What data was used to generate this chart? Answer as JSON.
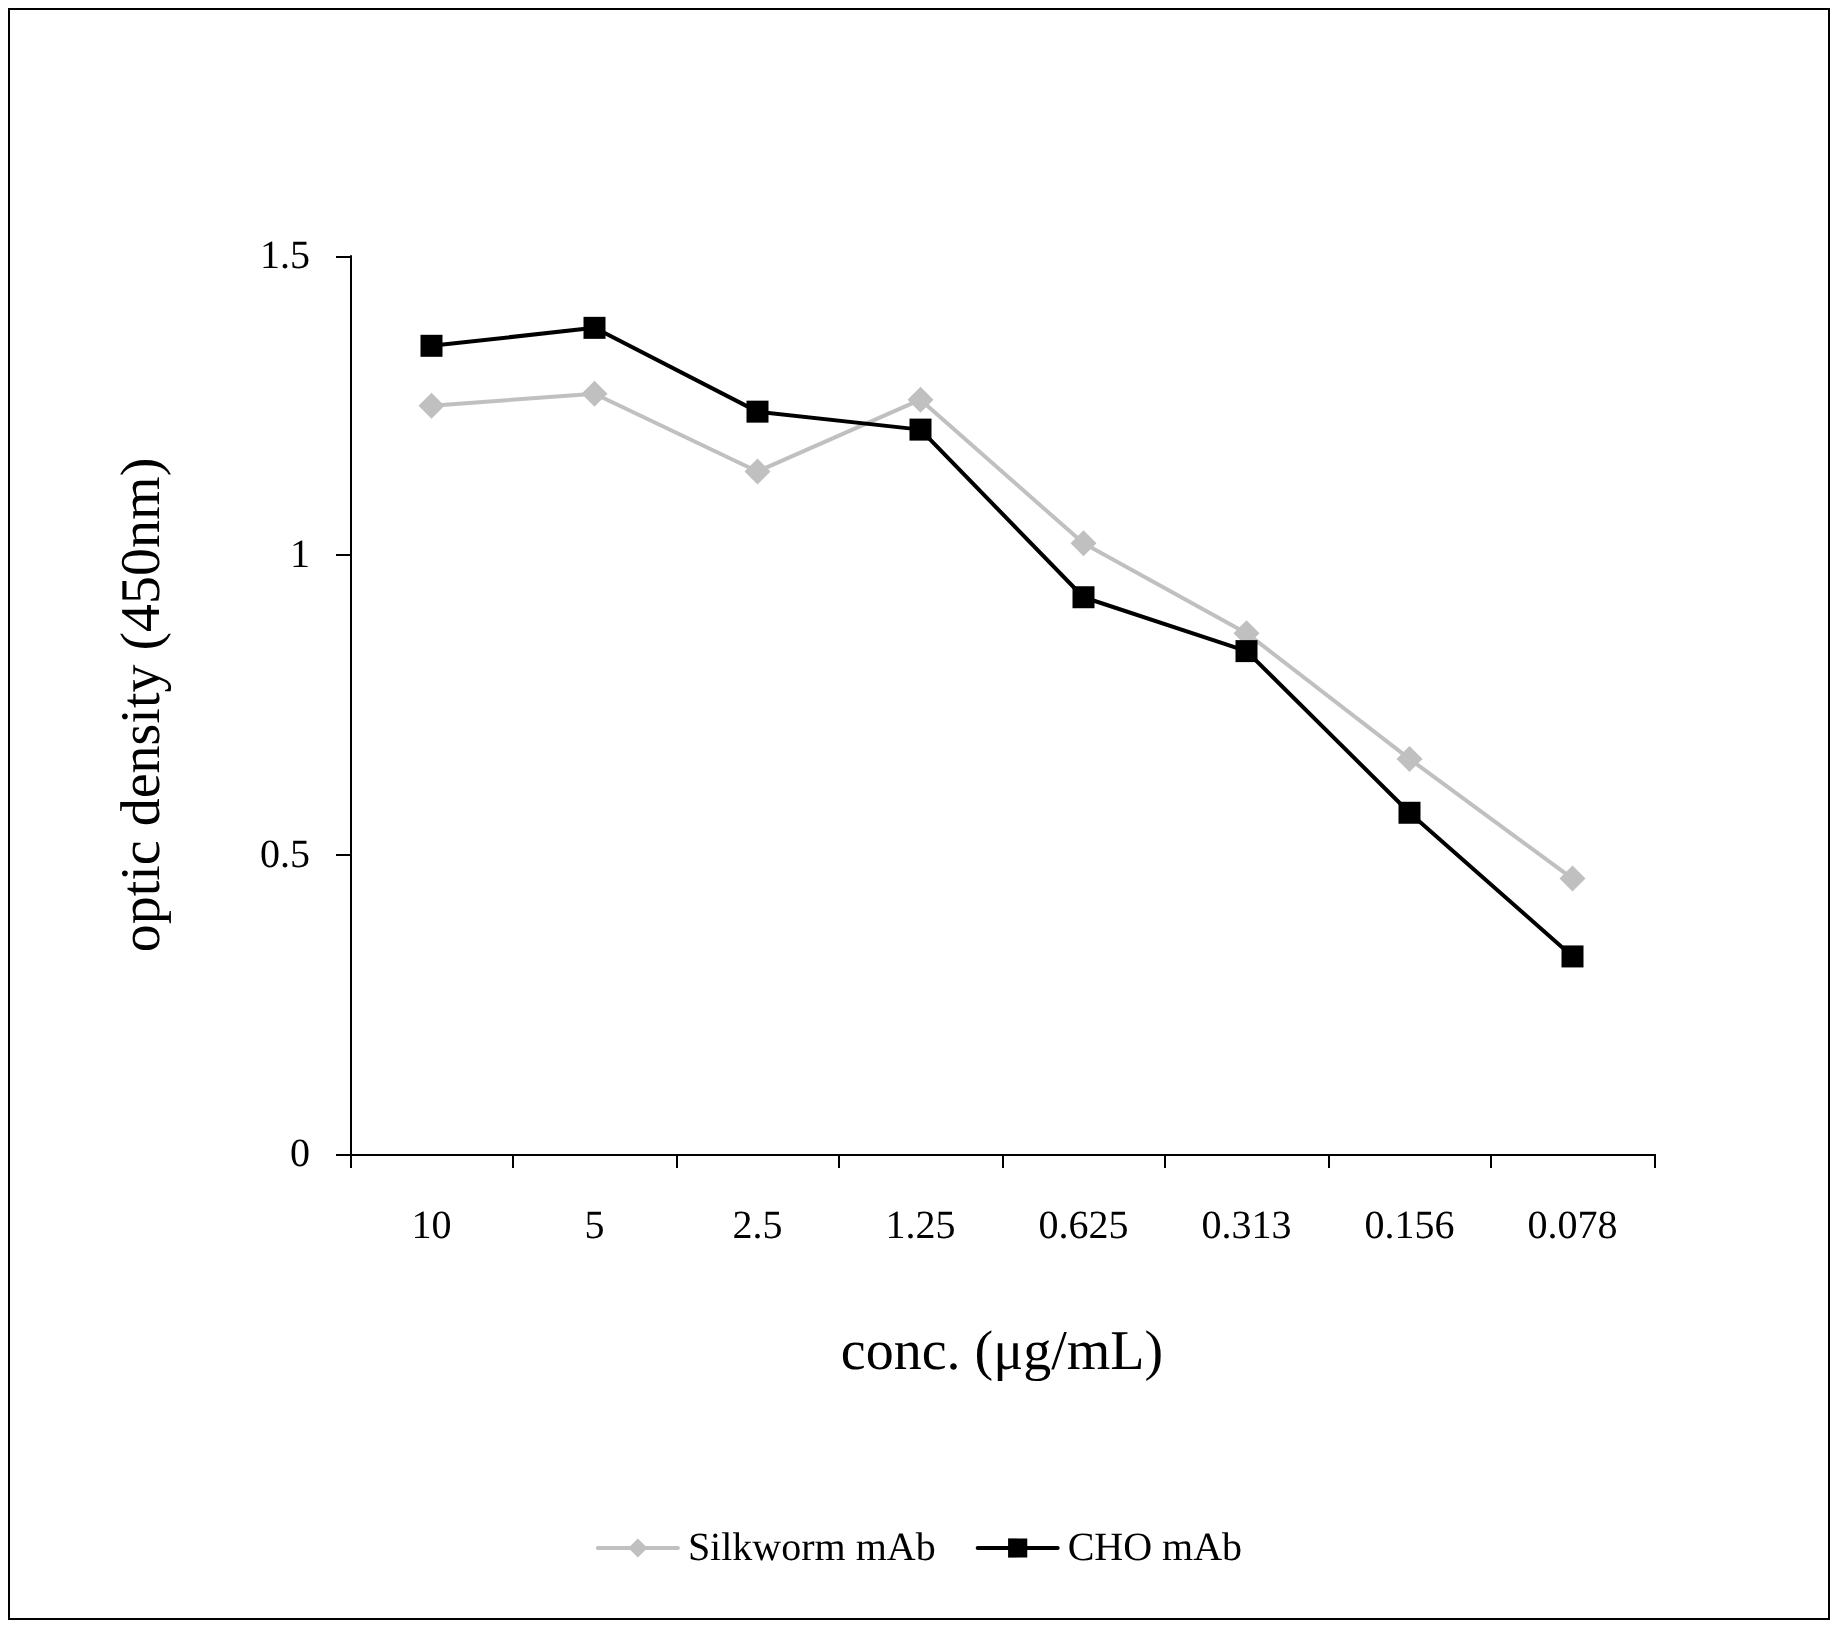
{
  "chart_data": {
    "type": "line",
    "xlabel": "conc. (μg/mL)",
    "ylabel": "optic density (450nm)",
    "categories": [
      "10",
      "5",
      "2.5",
      "1.25",
      "0.625",
      "0.313",
      "0.156",
      "0.078"
    ],
    "series": [
      {
        "name": "Silkworm mAb",
        "color": "#c0c0c0",
        "marker": "diamond",
        "values": [
          1.25,
          1.27,
          1.14,
          1.26,
          1.02,
          0.87,
          0.66,
          0.46
        ]
      },
      {
        "name": "CHO mAb",
        "color": "#000000",
        "marker": "square",
        "values": [
          1.35,
          1.38,
          1.24,
          1.21,
          0.93,
          0.84,
          0.57,
          0.33
        ]
      }
    ],
    "ylim": [
      0,
      1.5
    ],
    "yticks": [
      0,
      0.5,
      1,
      1.5
    ],
    "grid": false,
    "legend": "bottom",
    "line_style": "solid"
  }
}
